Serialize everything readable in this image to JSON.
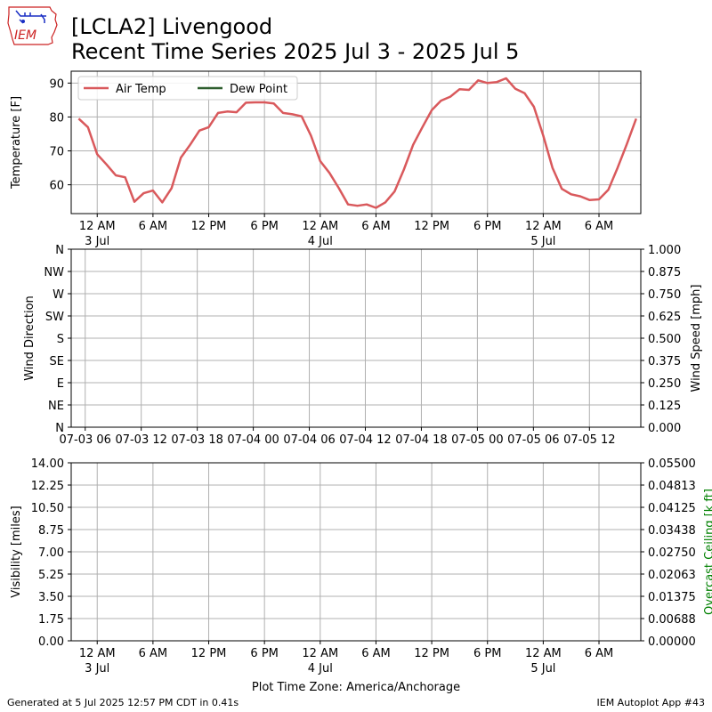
{
  "header": {
    "title_line1": "[LCLA2] Livengood",
    "title_line2": "Recent Time Series 2025 Jul 3 - 2025 Jul 5",
    "logo_text": "IEM"
  },
  "footer": {
    "generated": "Generated at 5 Jul 2025 12:57 PM CDT in 0.41s",
    "app": "IEM Autoplot App #43"
  },
  "colors": {
    "air_temp": "#d9595c",
    "dew_point": "#2e5e2e",
    "grid": "#b0b0b0",
    "ceiling_label": "#008000",
    "logo_blue": "#1a2fc4",
    "logo_red": "#cc2222"
  },
  "chart_data": [
    {
      "type": "line",
      "ylabel": "Temperature [F]",
      "ylim": [
        51.5,
        93.5
      ],
      "yticks": [
        60,
        70,
        80,
        90
      ],
      "xlim": [
        -2.8,
        58.5
      ],
      "xtick_positions": [
        0,
        6,
        12,
        18,
        24,
        30,
        36,
        42,
        48,
        54
      ],
      "xtick_labels": [
        "12 AM",
        "6 AM",
        "12 PM",
        "6 PM",
        "12 AM",
        "6 AM",
        "12 PM",
        "6 PM",
        "12 AM",
        "6 AM"
      ],
      "xtick_sublabels": [
        "3 Jul",
        "",
        "",
        "",
        "4 Jul",
        "",
        "",
        "",
        "5 Jul",
        ""
      ],
      "grid": true,
      "legend_position": "top-left",
      "series": [
        {
          "name": "Air Temp",
          "x": [
            -2,
            -1,
            0,
            1,
            2,
            3,
            4,
            5,
            6,
            7,
            8,
            9,
            10,
            11,
            12,
            13,
            14,
            15,
            16,
            17,
            18,
            19,
            20,
            21,
            22,
            23,
            24,
            25,
            26,
            27,
            28,
            29,
            30,
            31,
            32,
            33,
            34,
            35,
            36,
            37,
            38,
            39,
            40,
            41,
            42,
            43,
            44,
            45,
            46,
            47,
            48,
            49,
            50,
            51,
            52,
            53,
            54,
            55,
            56,
            57,
            58
          ],
          "y": [
            79.5,
            77,
            69,
            66,
            62.8,
            62.2,
            55,
            57.5,
            58.3,
            54.8,
            59,
            68,
            71.8,
            76,
            77,
            81.2,
            81.6,
            81.4,
            84.2,
            84.3,
            84.3,
            84,
            81.2,
            80.8,
            80.2,
            74.5,
            67,
            63.5,
            59,
            54.2,
            53.8,
            54.2,
            53.2,
            54.8,
            58,
            64.5,
            71.8,
            77,
            82,
            84.8,
            86,
            88.2,
            88,
            90.8,
            90,
            90.3,
            91.4,
            88.3,
            87,
            83,
            74.5,
            65,
            58.8,
            57.2,
            56.6,
            55.5,
            55.7,
            58.5,
            65,
            72,
            79.5
          ]
        },
        {
          "name": "Dew Point",
          "x": [],
          "y": []
        }
      ]
    },
    {
      "type": "line",
      "ylabel": "Wind Direction",
      "ylabel_right": "Wind Speed [mph]",
      "ylim": [
        0,
        360
      ],
      "yticks": [
        0,
        45,
        90,
        135,
        180,
        225,
        270,
        315,
        360
      ],
      "ytick_labels": [
        "N",
        "NE",
        "E",
        "SE",
        "S",
        "SW",
        "W",
        "NW",
        "N"
      ],
      "ylim_right": [
        0,
        1
      ],
      "yticks_right": [
        "0.000",
        "0.125",
        "0.250",
        "0.375",
        "0.500",
        "0.625",
        "0.750",
        "0.875",
        "1.000"
      ],
      "xlim": [
        -1.5,
        59.5
      ],
      "xtick_positions": [
        0,
        6,
        12,
        18,
        24,
        30,
        36,
        42,
        48,
        54
      ],
      "xtick_labels": [
        "07-03 06",
        "07-03 12",
        "07-03 18",
        "07-04 00",
        "07-04 06",
        "07-04 12",
        "07-04 18",
        "07-05 00",
        "07-05 06",
        "07-05 12"
      ],
      "grid": true,
      "series": []
    },
    {
      "type": "line",
      "ylabel": "Visibility [miles]",
      "ylabel_right": "Overcast Ceiling [k ft]",
      "ylim": [
        0,
        14
      ],
      "yticks": [
        "0.00",
        "1.75",
        "3.50",
        "5.25",
        "7.00",
        "8.75",
        "10.50",
        "12.25",
        "14.00"
      ],
      "ylim_right": [
        0,
        0.055
      ],
      "yticks_right": [
        "0.00000",
        "0.00688",
        "0.01375",
        "0.02063",
        "0.02750",
        "0.03438",
        "0.04125",
        "0.04813",
        "0.05500"
      ],
      "xlim": [
        -2.8,
        58.5
      ],
      "xtick_positions": [
        0,
        6,
        12,
        18,
        24,
        30,
        36,
        42,
        48,
        54
      ],
      "xtick_labels": [
        "12 AM",
        "6 AM",
        "12 PM",
        "6 PM",
        "12 AM",
        "6 AM",
        "12 PM",
        "6 PM",
        "12 AM",
        "6 AM"
      ],
      "xtick_sublabels": [
        "3 Jul",
        "",
        "",
        "",
        "4 Jul",
        "",
        "",
        "",
        "5 Jul",
        ""
      ],
      "xlabel": "Plot Time Zone: America/Anchorage",
      "grid": true,
      "series": []
    }
  ]
}
